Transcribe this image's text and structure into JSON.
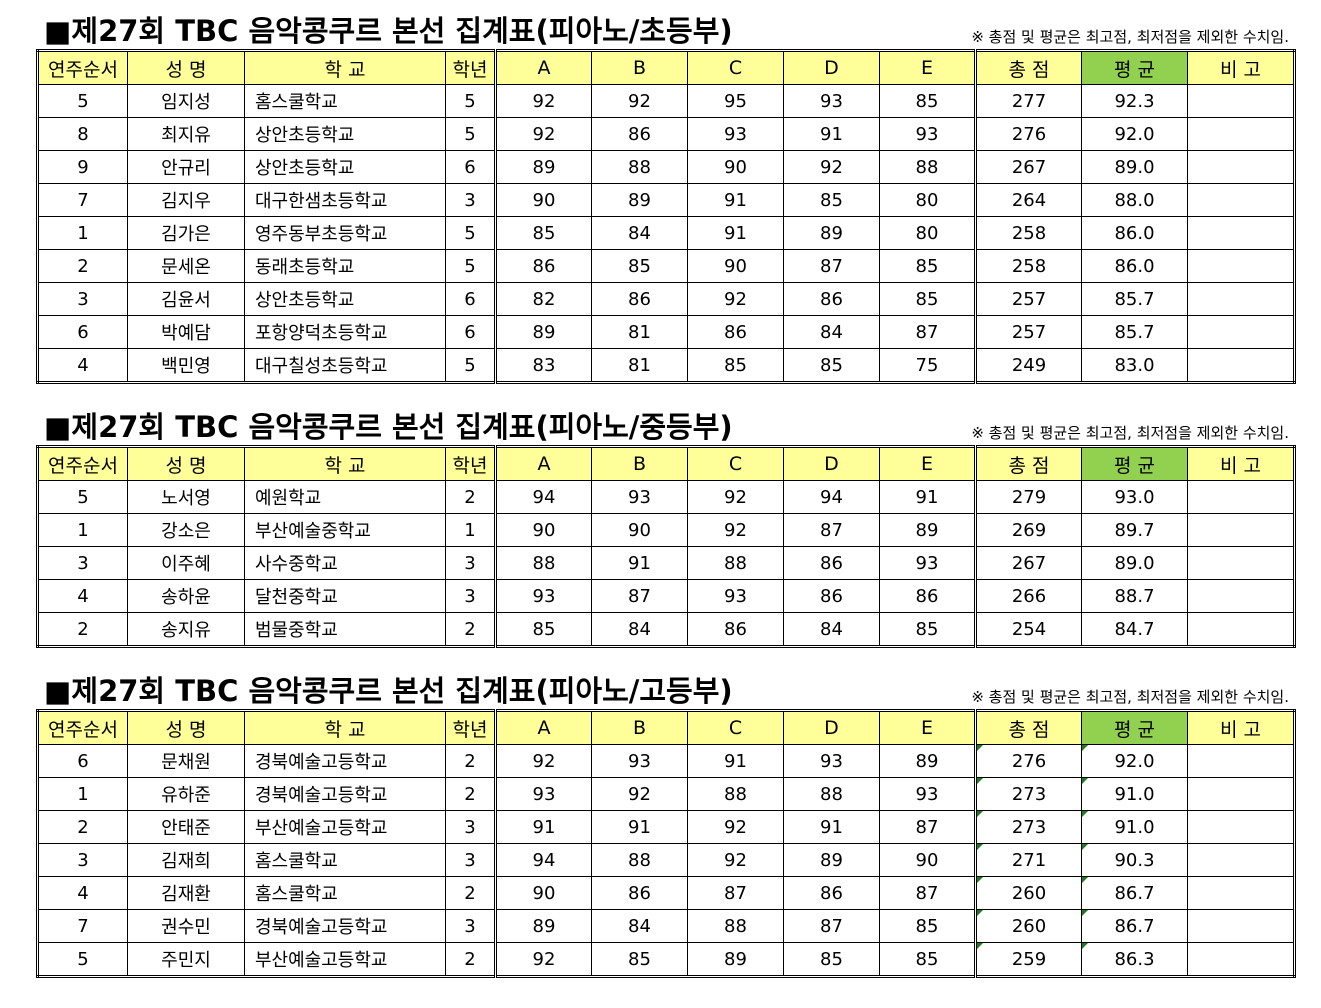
{
  "headers": [
    "연주순서",
    "성  명",
    "학  교",
    "학년",
    "A",
    "B",
    "C",
    "D",
    "E",
    "총 점",
    "평 균",
    "비  고"
  ],
  "colors": {
    "header": "#ffff99",
    "average_header": "#92d050"
  },
  "sections": [
    {
      "title": "■제27회 TBC 음악콩쿠르 본선 집계표(피아노/초등부)",
      "note": "※ 총점 및 평균은 최고점, 최저점을 제외한 수치임.",
      "rows": [
        [
          "5",
          "임지성",
          "홈스쿨학교",
          "5",
          "92",
          "92",
          "95",
          "93",
          "85",
          "277",
          "92.3",
          ""
        ],
        [
          "8",
          "최지유",
          "상안초등학교",
          "5",
          "92",
          "86",
          "93",
          "91",
          "93",
          "276",
          "92.0",
          ""
        ],
        [
          "9",
          "안규리",
          "상안초등학교",
          "6",
          "89",
          "88",
          "90",
          "92",
          "88",
          "267",
          "89.0",
          ""
        ],
        [
          "7",
          "김지우",
          "대구한샘초등학교",
          "3",
          "90",
          "89",
          "91",
          "85",
          "80",
          "264",
          "88.0",
          ""
        ],
        [
          "1",
          "김가은",
          "영주동부초등학교",
          "5",
          "85",
          "84",
          "91",
          "89",
          "80",
          "258",
          "86.0",
          ""
        ],
        [
          "2",
          "문세온",
          "동래초등학교",
          "5",
          "86",
          "85",
          "90",
          "87",
          "85",
          "258",
          "86.0",
          ""
        ],
        [
          "3",
          "김윤서",
          "상안초등학교",
          "6",
          "82",
          "86",
          "92",
          "86",
          "85",
          "257",
          "85.7",
          ""
        ],
        [
          "6",
          "박예담",
          "포항양덕초등학교",
          "6",
          "89",
          "81",
          "86",
          "84",
          "87",
          "257",
          "85.7",
          ""
        ],
        [
          "4",
          "백민영",
          "대구칠성초등학교",
          "5",
          "83",
          "81",
          "85",
          "85",
          "75",
          "249",
          "83.0",
          ""
        ]
      ]
    },
    {
      "title": "■제27회 TBC 음악콩쿠르 본선 집계표(피아노/중등부)",
      "note": "※ 총점 및 평균은 최고점, 최저점을 제외한 수치임.",
      "rows": [
        [
          "5",
          "노서영",
          "예원학교",
          "2",
          "94",
          "93",
          "92",
          "94",
          "91",
          "279",
          "93.0",
          ""
        ],
        [
          "1",
          "강소은",
          "부산예술중학교",
          "1",
          "90",
          "90",
          "92",
          "87",
          "89",
          "269",
          "89.7",
          ""
        ],
        [
          "3",
          "이주혜",
          "사수중학교",
          "3",
          "88",
          "91",
          "88",
          "86",
          "93",
          "267",
          "89.0",
          ""
        ],
        [
          "4",
          "송하윤",
          "달천중학교",
          "3",
          "93",
          "87",
          "93",
          "86",
          "86",
          "266",
          "88.7",
          ""
        ],
        [
          "2",
          "송지유",
          "범물중학교",
          "2",
          "85",
          "84",
          "86",
          "84",
          "85",
          "254",
          "84.7",
          ""
        ]
      ]
    },
    {
      "title": "■제27회 TBC 음악콩쿠르 본선 집계표(피아노/고등부)",
      "note": "※ 총점 및 평균은 최고점, 최저점을 제외한 수치임.",
      "rows": [
        [
          "6",
          "문채원",
          "경북예술고등학교",
          "2",
          "92",
          "93",
          "91",
          "93",
          "89",
          "276",
          "92.0",
          ""
        ],
        [
          "1",
          "유하준",
          "경북예술고등학교",
          "2",
          "93",
          "92",
          "88",
          "88",
          "93",
          "273",
          "91.0",
          ""
        ],
        [
          "2",
          "안태준",
          "부산예술고등학교",
          "3",
          "91",
          "91",
          "92",
          "91",
          "87",
          "273",
          "91.0",
          ""
        ],
        [
          "3",
          "김재희",
          "홈스쿨학교",
          "3",
          "94",
          "88",
          "92",
          "89",
          "90",
          "271",
          "90.3",
          ""
        ],
        [
          "4",
          "김재환",
          "홈스쿨학교",
          "2",
          "90",
          "86",
          "87",
          "86",
          "87",
          "260",
          "86.7",
          ""
        ],
        [
          "7",
          "권수민",
          "경북예술고등학교",
          "3",
          "89",
          "84",
          "88",
          "87",
          "85",
          "260",
          "86.7",
          ""
        ],
        [
          "5",
          "주민지",
          "부산예술고등학교",
          "2",
          "92",
          "85",
          "89",
          "85",
          "85",
          "259",
          "86.3",
          ""
        ]
      ]
    }
  ]
}
